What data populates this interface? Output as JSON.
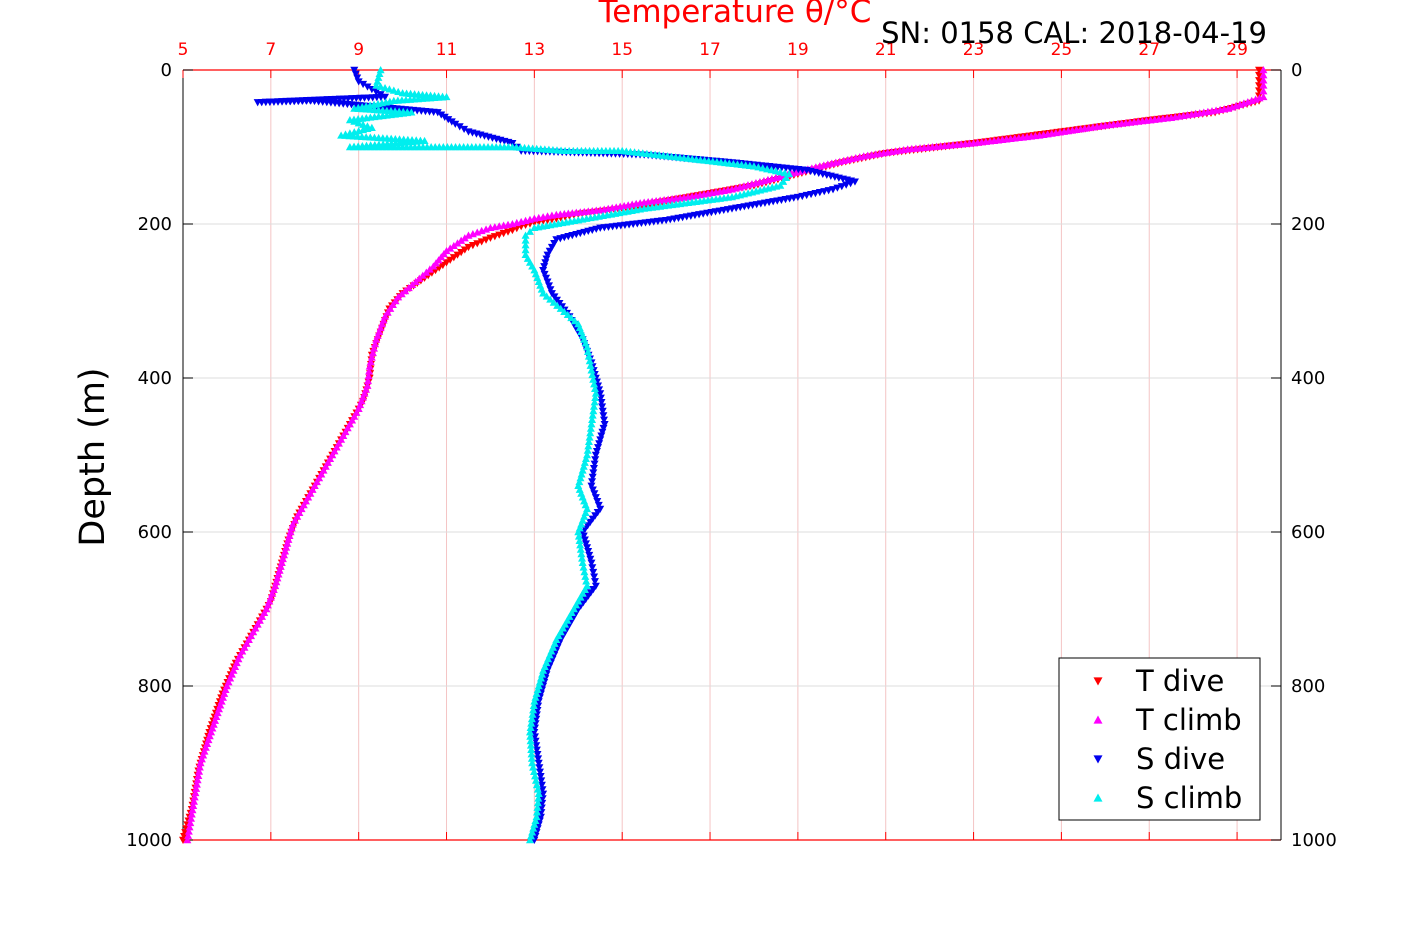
{
  "chart_data": {
    "type": "scatter",
    "title": "Temperature θ/°C",
    "annotation": "SN: 0158  CAL: 2018-04-19",
    "xlabel": "Temperature θ/°C",
    "ylabel": "Depth (m)",
    "xlim": [
      5,
      30
    ],
    "ylim": [
      0,
      1000
    ],
    "y_reversed": true,
    "x_ticks": [
      "5",
      "7",
      "9",
      "11",
      "13",
      "15",
      "17",
      "19",
      "21",
      "23",
      "25",
      "27",
      "29"
    ],
    "y_ticks_left": [
      "0",
      "200",
      "400",
      "600",
      "800",
      "1000"
    ],
    "y_ticks_right": [
      "0",
      "200",
      "400",
      "600",
      "800",
      "1000"
    ],
    "x_axis_position": "top",
    "grid": true,
    "legend_position": "bottom-right",
    "series": [
      {
        "name": "T dive",
        "color": "#ff0000",
        "marker": "triangle-down",
        "points": [
          [
            29.5,
            0
          ],
          [
            29.5,
            20
          ],
          [
            29.5,
            40
          ],
          [
            28.5,
            55
          ],
          [
            27.0,
            65
          ],
          [
            25.0,
            80
          ],
          [
            23.0,
            95
          ],
          [
            21.0,
            108
          ],
          [
            20.0,
            120
          ],
          [
            19.0,
            135
          ],
          [
            18.0,
            150
          ],
          [
            17.0,
            160
          ],
          [
            16.0,
            170
          ],
          [
            15.0,
            180
          ],
          [
            14.0,
            187
          ],
          [
            13.5,
            193
          ],
          [
            13.0,
            198
          ],
          [
            12.7,
            203
          ],
          [
            12.5,
            208
          ],
          [
            12.0,
            218
          ],
          [
            11.5,
            230
          ],
          [
            11.0,
            250
          ],
          [
            10.5,
            270
          ],
          [
            10.0,
            290
          ],
          [
            9.7,
            310
          ],
          [
            9.5,
            340
          ],
          [
            9.3,
            370
          ],
          [
            9.25,
            400
          ],
          [
            9.1,
            430
          ],
          [
            8.8,
            460
          ],
          [
            8.5,
            490
          ],
          [
            8.2,
            520
          ],
          [
            7.9,
            550
          ],
          [
            7.6,
            580
          ],
          [
            7.4,
            610
          ],
          [
            7.2,
            650
          ],
          [
            7.0,
            690
          ],
          [
            6.8,
            710
          ],
          [
            6.5,
            740
          ],
          [
            6.2,
            770
          ],
          [
            5.9,
            810
          ],
          [
            5.6,
            860
          ],
          [
            5.35,
            910
          ],
          [
            5.2,
            960
          ],
          [
            5.0,
            1000
          ]
        ]
      },
      {
        "name": "T climb",
        "color": "#ff00ff",
        "marker": "triangle-up",
        "points": [
          [
            29.6,
            0
          ],
          [
            29.6,
            20
          ],
          [
            29.6,
            35
          ],
          [
            28.8,
            50
          ],
          [
            27.5,
            62
          ],
          [
            26.0,
            72
          ],
          [
            24.5,
            85
          ],
          [
            23.0,
            95
          ],
          [
            21.5,
            103
          ],
          [
            20.5,
            112
          ],
          [
            19.5,
            125
          ],
          [
            18.5,
            140
          ],
          [
            17.5,
            155
          ],
          [
            16.5,
            165
          ],
          [
            15.5,
            172
          ],
          [
            14.5,
            182
          ],
          [
            13.5,
            188
          ],
          [
            13.0,
            193
          ],
          [
            12.5,
            200
          ],
          [
            12.0,
            205
          ],
          [
            11.5,
            215
          ],
          [
            11.0,
            235
          ],
          [
            10.7,
            255
          ],
          [
            10.3,
            275
          ],
          [
            9.9,
            295
          ],
          [
            9.6,
            320
          ],
          [
            9.4,
            350
          ],
          [
            9.25,
            385
          ],
          [
            9.2,
            410
          ],
          [
            9.0,
            440
          ],
          [
            8.7,
            470
          ],
          [
            8.4,
            500
          ],
          [
            8.1,
            530
          ],
          [
            7.8,
            560
          ],
          [
            7.5,
            590
          ],
          [
            7.3,
            630
          ],
          [
            7.1,
            670
          ],
          [
            6.9,
            700
          ],
          [
            6.6,
            730
          ],
          [
            6.3,
            760
          ],
          [
            6.0,
            800
          ],
          [
            5.7,
            850
          ],
          [
            5.4,
            900
          ],
          [
            5.25,
            950
          ],
          [
            5.1,
            1000
          ]
        ]
      },
      {
        "name": "S dive",
        "color": "#0000ee",
        "marker": "triangle-down",
        "points": [
          [
            8.9,
            0
          ],
          [
            9.0,
            15
          ],
          [
            9.3,
            25
          ],
          [
            9.6,
            35
          ],
          [
            6.7,
            42
          ],
          [
            7.9,
            40
          ],
          [
            10.8,
            55
          ],
          [
            11.2,
            70
          ],
          [
            11.5,
            80
          ],
          [
            12.5,
            95
          ],
          [
            12.7,
            105
          ],
          [
            15.5,
            110
          ],
          [
            17.5,
            120
          ],
          [
            19.2,
            130
          ],
          [
            20.3,
            145
          ],
          [
            19.8,
            155
          ],
          [
            19.0,
            165
          ],
          [
            17.5,
            180
          ],
          [
            16.0,
            195
          ],
          [
            14.5,
            205
          ],
          [
            13.5,
            220
          ],
          [
            13.3,
            240
          ],
          [
            13.2,
            260
          ],
          [
            13.4,
            290
          ],
          [
            13.8,
            320
          ],
          [
            14.1,
            350
          ],
          [
            14.3,
            380
          ],
          [
            14.5,
            420
          ],
          [
            14.6,
            460
          ],
          [
            14.4,
            500
          ],
          [
            14.3,
            540
          ],
          [
            14.5,
            570
          ],
          [
            14.1,
            600
          ],
          [
            14.3,
            640
          ],
          [
            14.4,
            670
          ],
          [
            14.0,
            700
          ],
          [
            13.6,
            740
          ],
          [
            13.3,
            780
          ],
          [
            13.1,
            820
          ],
          [
            13.0,
            860
          ],
          [
            13.1,
            900
          ],
          [
            13.2,
            940
          ],
          [
            13.15,
            970
          ],
          [
            13.0,
            1000
          ]
        ]
      },
      {
        "name": "S climb",
        "color": "#00eeee",
        "marker": "triangle-up",
        "points": [
          [
            9.5,
            0
          ],
          [
            9.4,
            20
          ],
          [
            10.0,
            30
          ],
          [
            11.0,
            35
          ],
          [
            9.8,
            40
          ],
          [
            8.9,
            50
          ],
          [
            10.2,
            55
          ],
          [
            8.8,
            65
          ],
          [
            9.3,
            75
          ],
          [
            8.6,
            85
          ],
          [
            10.5,
            92
          ],
          [
            8.8,
            100
          ],
          [
            12.5,
            100
          ],
          [
            13.7,
            105
          ],
          [
            15.0,
            105
          ],
          [
            16.5,
            115
          ],
          [
            18.0,
            125
          ],
          [
            18.8,
            135
          ],
          [
            18.6,
            150
          ],
          [
            17.5,
            165
          ],
          [
            15.5,
            180
          ],
          [
            14.0,
            195
          ],
          [
            13.0,
            205
          ],
          [
            12.8,
            215
          ],
          [
            12.8,
            240
          ],
          [
            13.0,
            260
          ],
          [
            13.2,
            290
          ],
          [
            13.6,
            310
          ],
          [
            14.0,
            330
          ],
          [
            14.2,
            360
          ],
          [
            14.3,
            390
          ],
          [
            14.4,
            420
          ],
          [
            14.3,
            460
          ],
          [
            14.2,
            500
          ],
          [
            14.0,
            540
          ],
          [
            14.2,
            570
          ],
          [
            14.0,
            600
          ],
          [
            14.1,
            640
          ],
          [
            14.2,
            670
          ],
          [
            13.9,
            700
          ],
          [
            13.5,
            740
          ],
          [
            13.2,
            780
          ],
          [
            13.0,
            820
          ],
          [
            12.9,
            860
          ],
          [
            12.95,
            900
          ],
          [
            13.1,
            940
          ],
          [
            13.05,
            970
          ],
          [
            12.9,
            1000
          ]
        ]
      }
    ]
  }
}
